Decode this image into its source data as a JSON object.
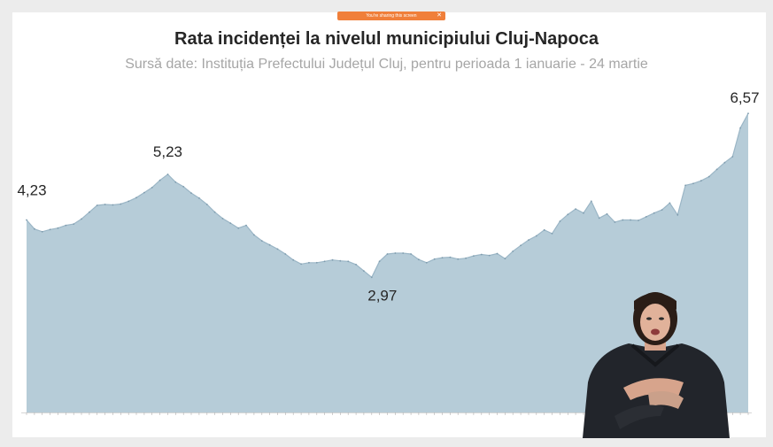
{
  "share_bar": {
    "text": "You're sharing this screen",
    "close": "✕"
  },
  "chart_data": {
    "type": "area",
    "title": "Rata incidenței la nivelul municipiului Cluj-Napoca",
    "subtitle": "Sursă date: Instituția Prefectului Județul Cluj, pentru perioada 1 ianuarie - 24 martie",
    "xlabel": "",
    "ylabel": "",
    "ylim": [
      0,
      7
    ],
    "grid": false,
    "fill_color": "#b6ccd8",
    "line_color": "#9bb6c6",
    "series": [
      {
        "values": [
          4.23,
          4.03,
          3.97,
          4.02,
          4.05,
          4.11,
          4.14,
          4.25,
          4.4,
          4.55,
          4.57,
          4.56,
          4.58,
          4.64,
          4.72,
          4.83,
          4.94,
          5.1,
          5.23,
          5.06,
          4.96,
          4.82,
          4.71,
          4.57,
          4.4,
          4.26,
          4.16,
          4.05,
          4.11,
          3.9,
          3.77,
          3.68,
          3.59,
          3.48,
          3.35,
          3.26,
          3.29,
          3.29,
          3.32,
          3.35,
          3.33,
          3.32,
          3.25,
          3.11,
          2.97,
          3.32,
          3.48,
          3.5,
          3.5,
          3.48,
          3.36,
          3.29,
          3.37,
          3.4,
          3.41,
          3.37,
          3.39,
          3.44,
          3.47,
          3.45,
          3.49,
          3.38,
          3.54,
          3.67,
          3.79,
          3.88,
          4.01,
          3.93,
          4.2,
          4.35,
          4.47,
          4.38,
          4.64,
          4.27,
          4.36,
          4.18,
          4.23,
          4.23,
          4.22,
          4.3,
          4.38,
          4.45,
          4.6,
          4.34,
          4.99,
          5.03,
          5.09,
          5.18,
          5.34,
          5.49,
          5.62,
          6.25,
          6.57
        ]
      }
    ],
    "annotations": [
      {
        "label": "4,23",
        "index": 0
      },
      {
        "label": "5,23",
        "index": 18
      },
      {
        "label": "2,97",
        "index": 44
      },
      {
        "label": "6,57",
        "index": 92
      }
    ]
  }
}
